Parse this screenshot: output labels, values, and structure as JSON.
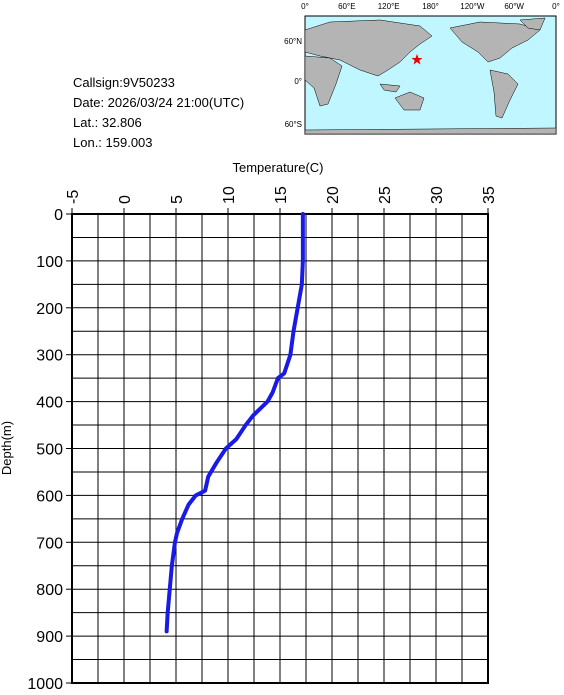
{
  "info": [
    "Callsign:9V50233",
    "Date:  2026/03/24 21:00(UTC)",
    "Lat.:  32.806",
    "Lon.:  159.003"
  ],
  "map": {
    "lon_labels": [
      "0°",
      "60°E",
      "120°E",
      "180°",
      "120°W",
      "60°W",
      "0°"
    ],
    "lat_labels": [
      "60°N",
      "0°",
      "60°S"
    ]
  },
  "chart_data": {
    "type": "line",
    "xlabel": "Temperature(C)",
    "ylabel": "Depth(m)",
    "xlim": [
      -5,
      35
    ],
    "xticks": [
      -5,
      0,
      5,
      10,
      15,
      20,
      25,
      30,
      35
    ],
    "ylim": [
      0,
      1000
    ],
    "yticks": [
      0,
      100,
      200,
      300,
      400,
      500,
      600,
      700,
      800,
      900,
      1000
    ],
    "inverted_y": true,
    "grid": true,
    "color": "#1a1ae6",
    "x": [
      17.2,
      17.2,
      17.1,
      16.7,
      16.3,
      16.0,
      15.4,
      14.8,
      14.3,
      13.8,
      12.4,
      11.7,
      10.8,
      9.8,
      8.9,
      8.1,
      7.8,
      6.9,
      6.2,
      5.6,
      5.1,
      4.9,
      4.6,
      4.4,
      4.2,
      4.1
    ],
    "y": [
      0,
      100,
      150,
      200,
      250,
      300,
      340,
      350,
      380,
      400,
      430,
      450,
      480,
      500,
      530,
      560,
      590,
      600,
      620,
      650,
      680,
      700,
      750,
      800,
      850,
      890
    ]
  }
}
